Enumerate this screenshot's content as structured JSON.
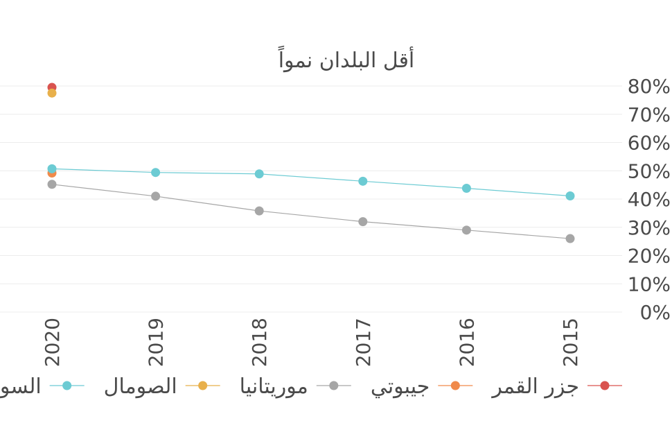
{
  "chart_data": {
    "type": "line",
    "title": "أقل البلدان نمواً",
    "xlabel": "",
    "ylabel": "",
    "x": [
      "2020",
      "2019",
      "2018",
      "2017",
      "2016",
      "2015"
    ],
    "y_ticks": [
      "0%",
      "10%",
      "20%",
      "30%",
      "40%",
      "50%",
      "60%",
      "70%",
      "80%"
    ],
    "ylim": [
      0,
      80
    ],
    "y_unit": "%",
    "grid": true,
    "legend_position": "bottom",
    "series": [
      {
        "name": "جزر القمر",
        "color": "#d9534f",
        "values": [
          79.5,
          null,
          null,
          null,
          null,
          null
        ]
      },
      {
        "name": "جيبوتي",
        "color": "#f08a4b",
        "values": [
          49.2,
          null,
          null,
          null,
          null,
          null
        ]
      },
      {
        "name": "موريتانيا",
        "color": "#a6a6a6",
        "values": [
          45.2,
          41.0,
          35.8,
          32.0,
          29.0,
          26.0
        ]
      },
      {
        "name": "الصومال",
        "color": "#e8b04b",
        "values": [
          77.5,
          null,
          null,
          null,
          null,
          null
        ]
      },
      {
        "name": "السودان",
        "color": "#6ccbd3",
        "values": [
          50.7,
          49.4,
          48.9,
          46.3,
          43.8,
          41.1
        ]
      }
    ]
  }
}
